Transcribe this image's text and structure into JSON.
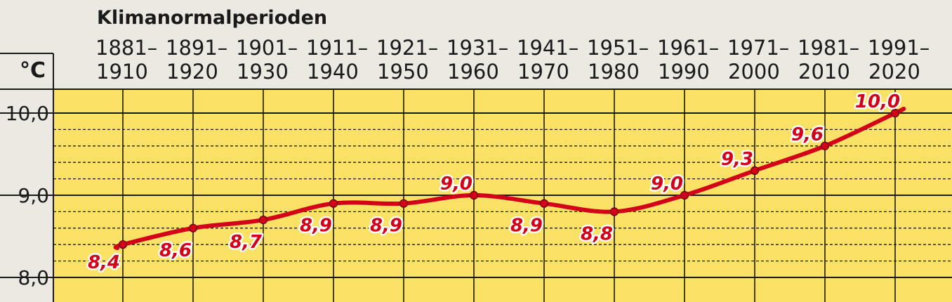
{
  "chart_data": {
    "type": "line",
    "title": "Klimanormalperioden",
    "ylabel": "°C",
    "categories": [
      [
        "1881–",
        "1910"
      ],
      [
        "1891–",
        "1920"
      ],
      [
        "1901–",
        "1930"
      ],
      [
        "1911–",
        "1940"
      ],
      [
        "1921–",
        "1950"
      ],
      [
        "1931–",
        "1960"
      ],
      [
        "1941–",
        "1970"
      ],
      [
        "1951–",
        "1980"
      ],
      [
        "1961–",
        "1990"
      ],
      [
        "1971–",
        "2000"
      ],
      [
        "1981–",
        "2010"
      ],
      [
        "1991–",
        "2020"
      ]
    ],
    "values": [
      8.4,
      8.6,
      8.7,
      8.9,
      8.9,
      9.0,
      8.9,
      8.8,
      9.0,
      9.3,
      9.6,
      10.0
    ],
    "data_labels": [
      "8,4",
      "8,6",
      "8,7",
      "8,9",
      "8,9",
      "9,0",
      "8,9",
      "8,8",
      "9,0",
      "9,3",
      "9,6",
      "10,0"
    ],
    "y_ticks": [
      {
        "value": 10.0,
        "label": "10,0"
      },
      {
        "value": 9.0,
        "label": "9,0"
      },
      {
        "value": 8.0,
        "label": "8,0"
      }
    ],
    "ylim": [
      8.0,
      10.2
    ],
    "minor_gridlines": [
      8.2,
      8.4,
      8.6,
      8.8,
      9.2,
      9.4,
      9.6,
      9.8
    ],
    "grid": true,
    "colors": {
      "plot_background": "#fbe165",
      "page_background": "#ece9e2",
      "line": "#d4001a",
      "marker_fill": "#d4001a",
      "label": "#d4001a",
      "grid": "#1a1a1a"
    }
  }
}
